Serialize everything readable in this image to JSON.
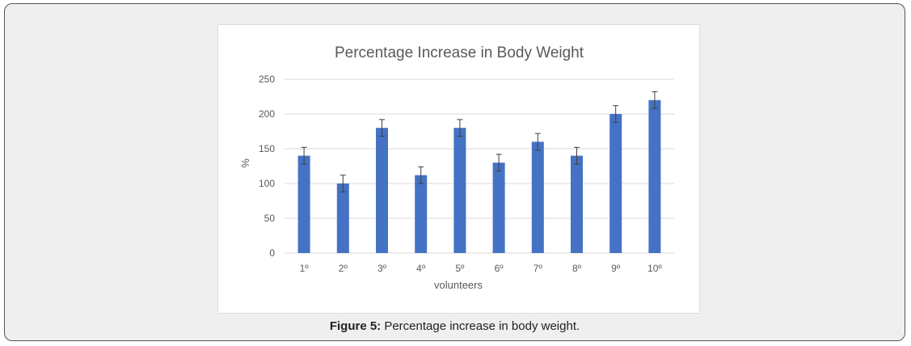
{
  "figure": {
    "caption_label": "Figure 5:",
    "caption_text": " Percentage increase in body weight."
  },
  "chart_data": {
    "type": "bar",
    "title": "Percentage Increase in Body Weight",
    "xlabel": "volunteers",
    "ylabel": "%",
    "ylim": [
      0,
      250
    ],
    "yticks": [
      0,
      50,
      100,
      150,
      200,
      250
    ],
    "grid": true,
    "categories": [
      "1º",
      "2º",
      "3º",
      "4º",
      "5º",
      "6º",
      "7º",
      "8º",
      "9º",
      "10º"
    ],
    "values": [
      140,
      100,
      180,
      112,
      180,
      130,
      160,
      140,
      200,
      220
    ],
    "error": [
      12,
      12,
      12,
      12,
      12,
      12,
      12,
      12,
      12,
      12
    ],
    "colors": {
      "bar": "#4472c4",
      "grid": "#d9d9d9",
      "error": "#404040",
      "text": "#595959"
    }
  }
}
